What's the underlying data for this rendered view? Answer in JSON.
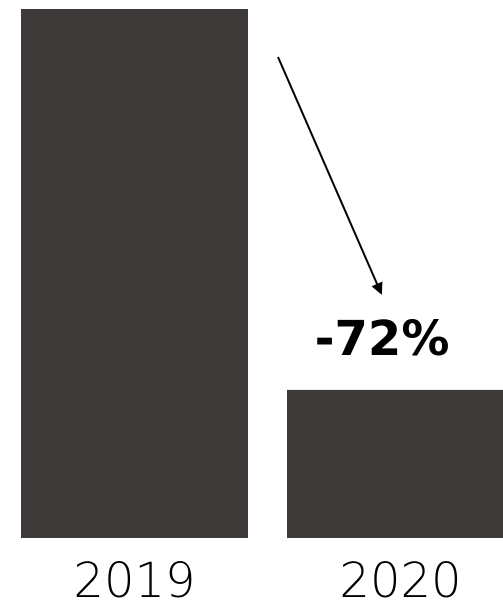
{
  "chart_data": {
    "type": "bar",
    "categories": [
      "2019",
      "2020"
    ],
    "values": [
      100,
      28
    ],
    "annotation": "-72%",
    "colors": {
      "bar": "#3e3a39",
      "text": "#000000",
      "arrow": "#000000",
      "background": "#ffffff"
    },
    "grid": false,
    "legend": "none"
  }
}
